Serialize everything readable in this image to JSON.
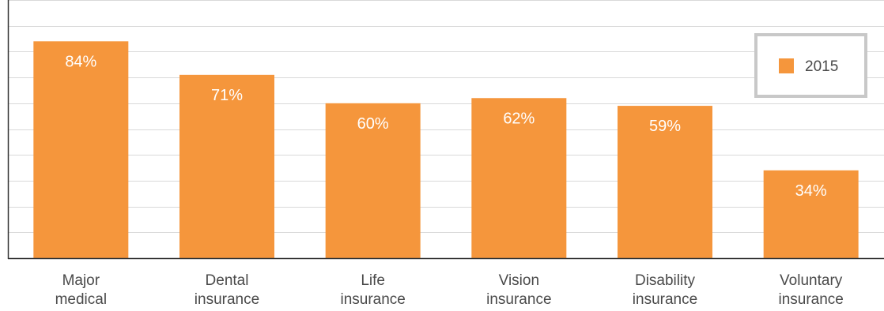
{
  "chart_data": {
    "type": "bar",
    "categories": [
      [
        "Major",
        "medical"
      ],
      [
        "Dental",
        "insurance"
      ],
      [
        "Life",
        "insurance"
      ],
      [
        "Vision",
        "insurance"
      ],
      [
        "Disability",
        "insurance"
      ],
      [
        "Voluntary",
        "insurance"
      ]
    ],
    "series": [
      {
        "name": "2015",
        "values": [
          84,
          71,
          60,
          62,
          59,
          34
        ],
        "labels": [
          "84%",
          "71%",
          "60%",
          "62%",
          "59%",
          "34%"
        ]
      }
    ],
    "title": "",
    "xlabel": "",
    "ylabel": "",
    "ylim": [
      0,
      100
    ],
    "grid": true,
    "legend_position": "top-right",
    "colors": {
      "bar": "#F5963C",
      "grid": "#D9D9D9",
      "axis": "#333333",
      "legend_border": "#C8C8C8"
    }
  }
}
